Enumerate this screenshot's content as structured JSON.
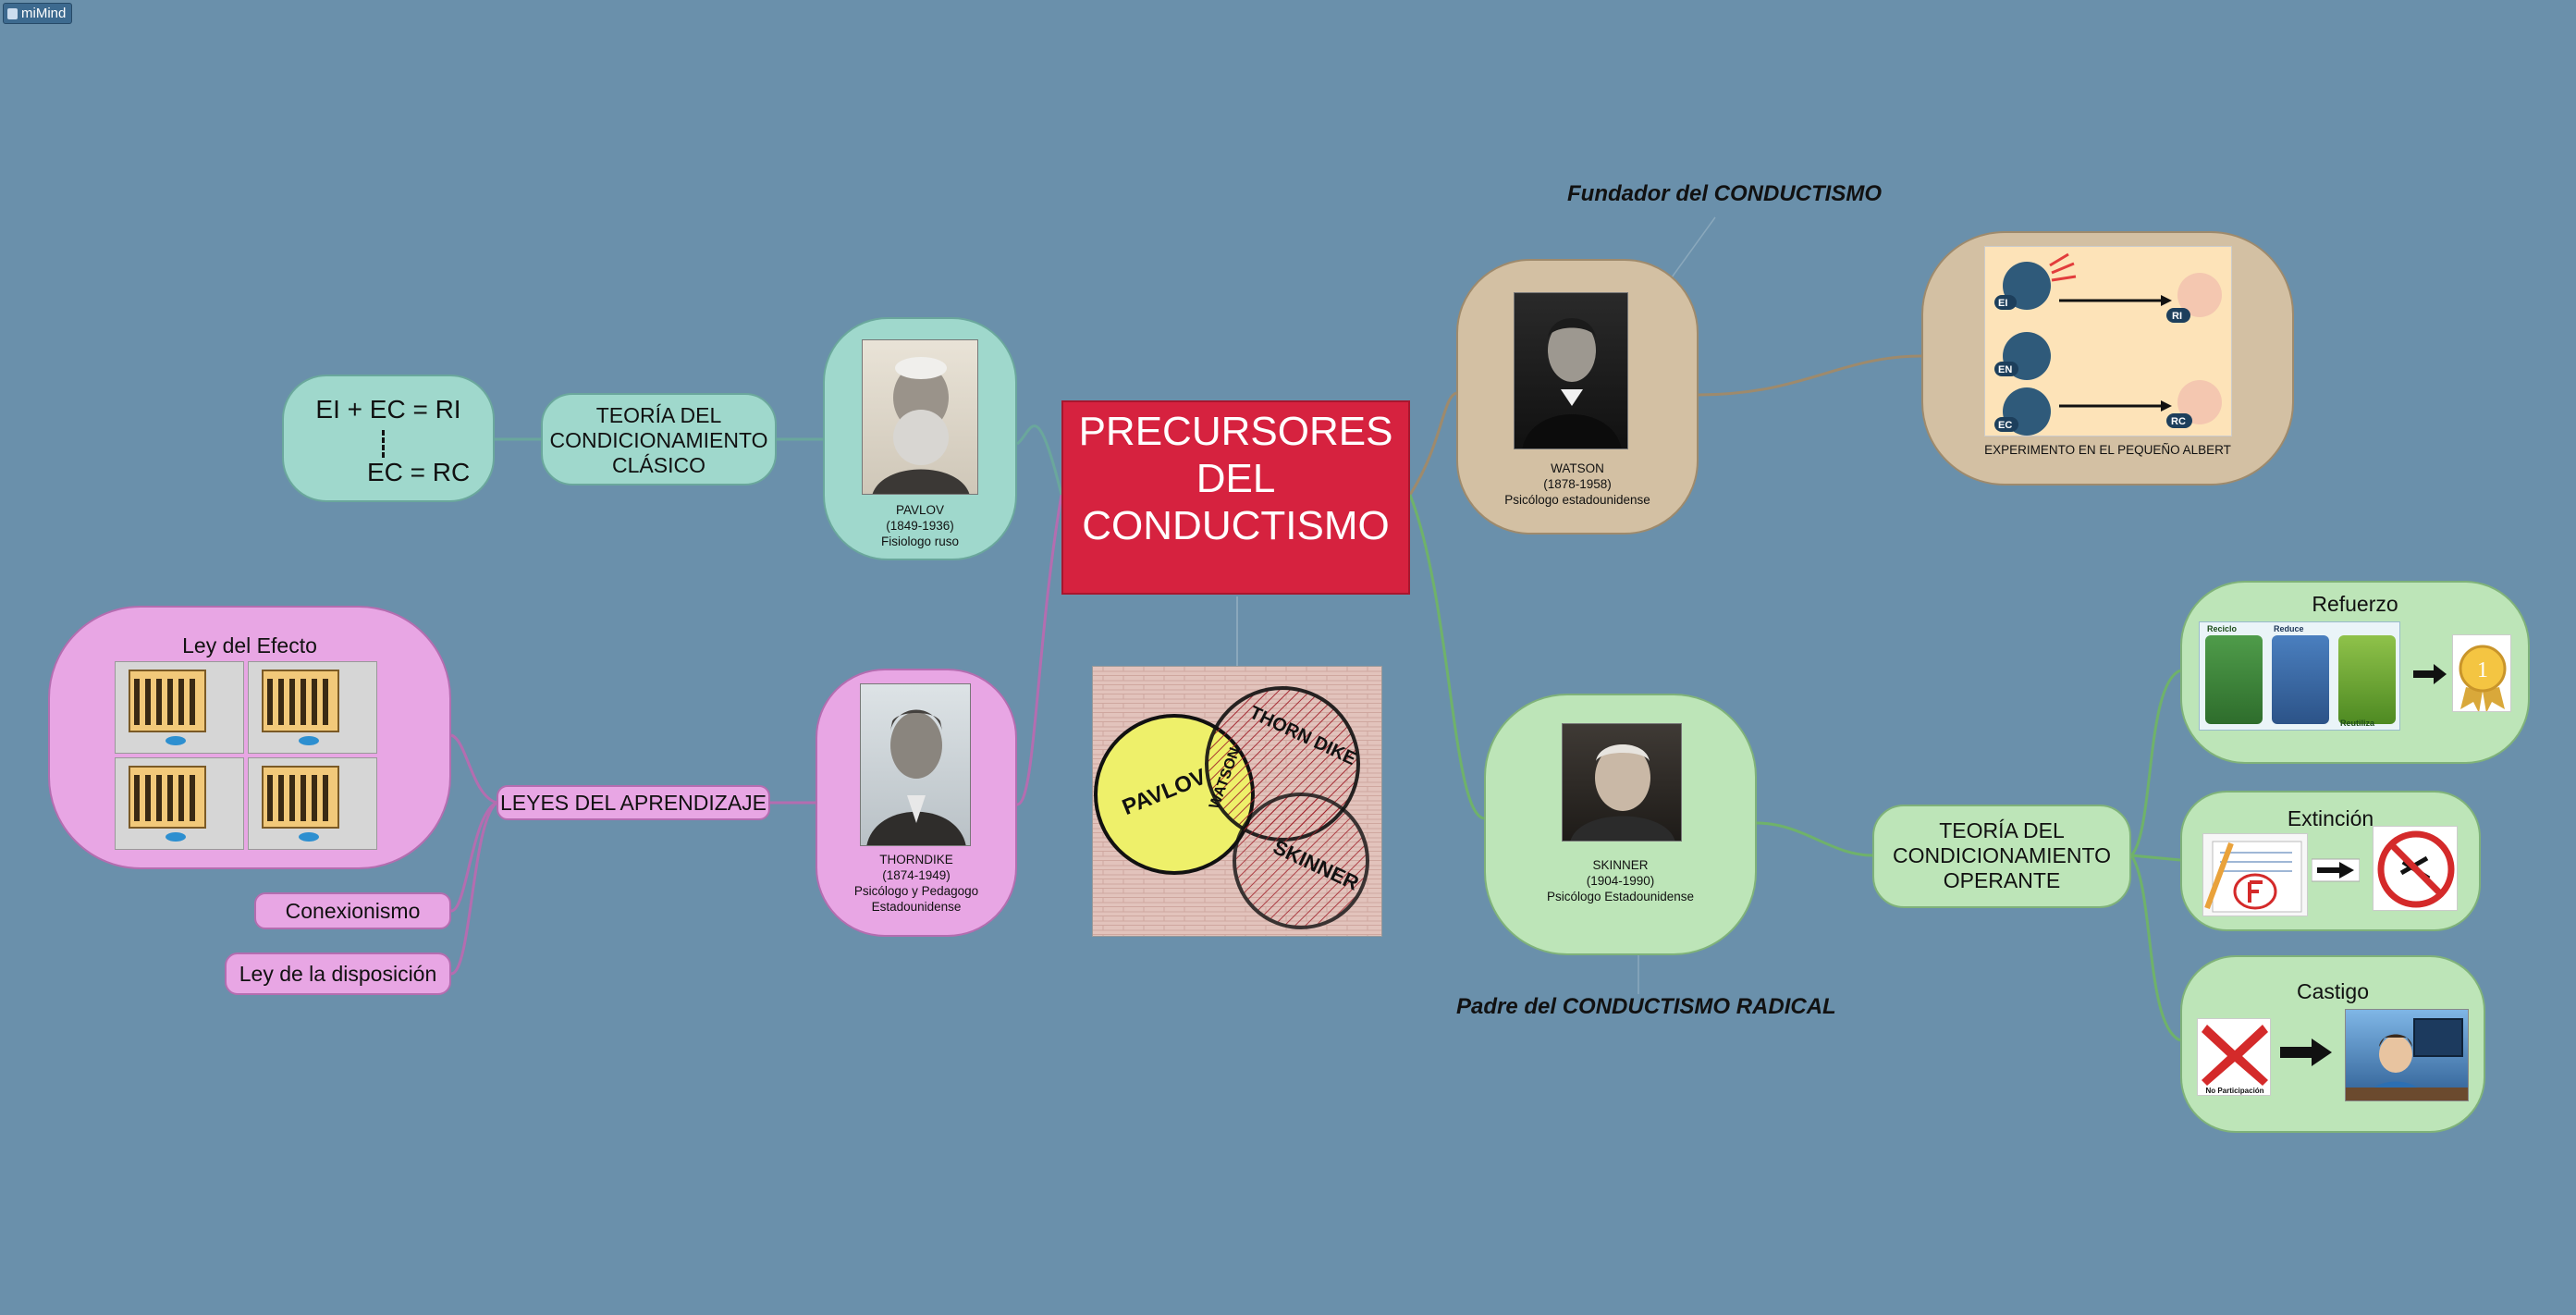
{
  "app": {
    "logo": "miMind"
  },
  "central": {
    "title_lines": [
      "PRECURSORES",
      "DEL",
      "CONDUCTISMO"
    ],
    "color": "#d6223f"
  },
  "venn": {
    "names": [
      "PAVLOV",
      "WATSON",
      "THORN DIKE",
      "SKINNER"
    ]
  },
  "pavlov": {
    "formula_top": "EI + EC = RI",
    "formula_bottom": "EC = RC",
    "theory_lines": [
      "TEORÍA DEL",
      "CONDICIONAMIENTO",
      "CLÁSICO"
    ],
    "caption_lines": [
      "PAVLOV",
      "(1849-1936)",
      "Fisiologo ruso"
    ]
  },
  "thorndike": {
    "laws_title": "LEYES DEL APRENDIZAJE",
    "effect_title": "Ley del Efecto",
    "connectionism": "Conexionismo",
    "disposition": "Ley de la disposición",
    "caption_lines": [
      "THORNDIKE",
      "(1874-1949)",
      "Psicólogo y Pedagogo",
      "Estadounidense"
    ]
  },
  "watson": {
    "note": "Fundador del CONDUCTISMO",
    "caption_lines": [
      "WATSON",
      "(1878-1958)",
      "Psicólogo estadounidense"
    ],
    "experiment_caption": "EXPERIMENTO EN EL PEQUEÑO ALBERT",
    "experiment_labels": [
      "EI",
      "RI",
      "EN",
      "EC",
      "RC"
    ]
  },
  "skinner": {
    "note": "Padre del CONDUCTISMO RADICAL",
    "caption_lines": [
      "SKINNER",
      "(1904-1990)",
      "Psicólogo Estadounidense"
    ],
    "theory_lines": [
      "TEORÍA DEL",
      "CONDICIONAMIENTO",
      "OPERANTE"
    ],
    "reinforcement": "Refuerzo",
    "extinction": "Extinción",
    "punishment": "Castigo",
    "reinforcement_labels": [
      "Reciclo",
      "Reduce",
      "Reutiliza"
    ],
    "medal_number": "1",
    "punish_label": "No Participación"
  },
  "colors": {
    "background": "#6a90ab",
    "teal": "#9fd8cc",
    "pink": "#e8a6e4",
    "tan": "#d3c0a3",
    "green": "#bde5b8"
  }
}
